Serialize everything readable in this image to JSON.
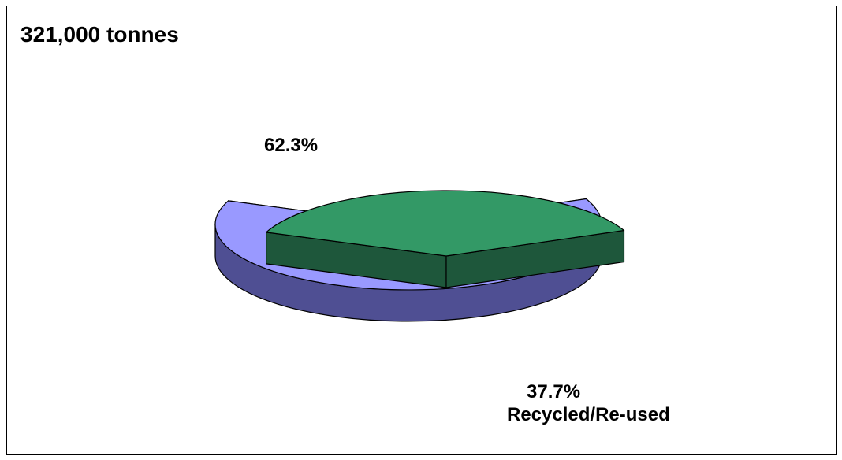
{
  "chart_data": {
    "type": "pie",
    "title": "321,000 tonnes",
    "slices": [
      {
        "value": 62.3,
        "label": "62.3%",
        "category": "",
        "color": "#9999ff",
        "side_color": "#4f4f93"
      },
      {
        "value": 37.7,
        "label": "37.7%",
        "category": "Recycled/Re-used",
        "color": "#339966",
        "side_color": "#1e573b"
      }
    ],
    "exploded_slice": 1,
    "style": "3d"
  }
}
